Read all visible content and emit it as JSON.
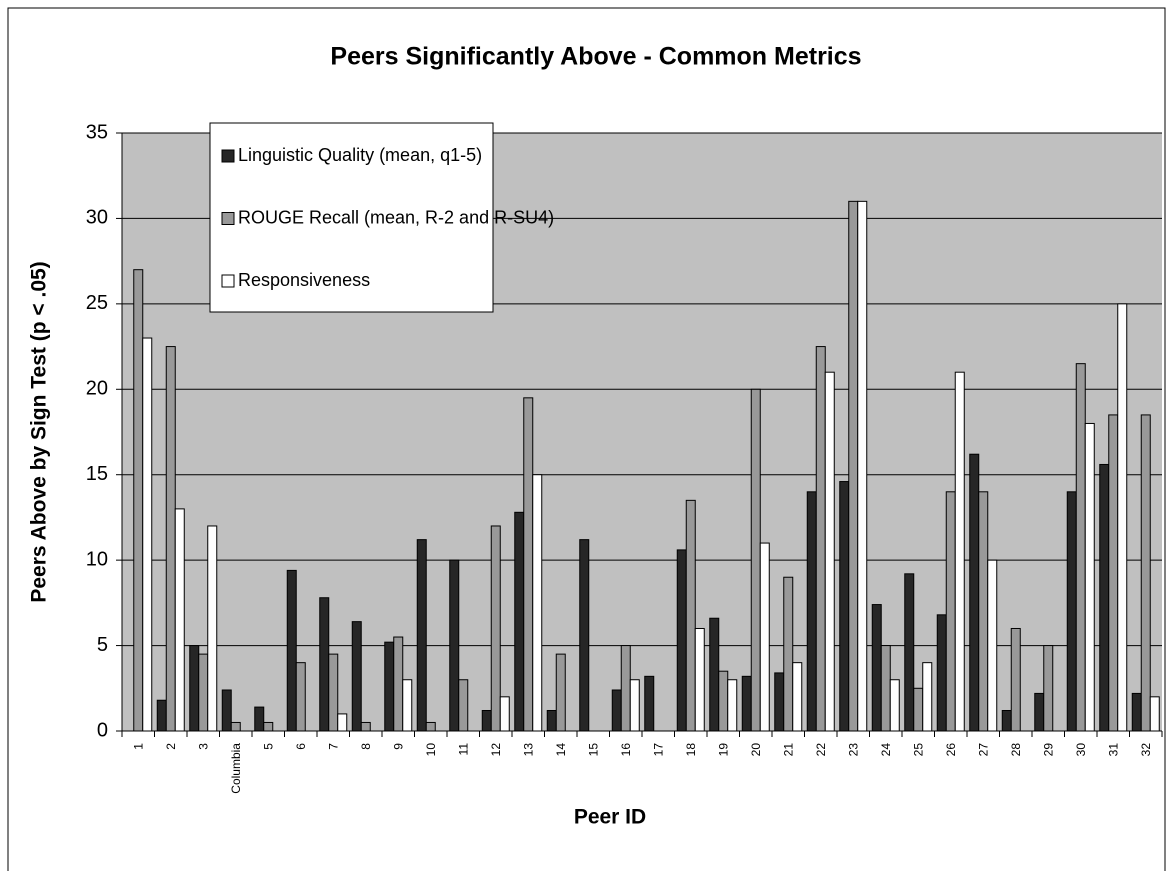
{
  "chart_data": {
    "type": "bar",
    "title": "Peers Significantly Above - Common Metrics",
    "x_label": "Peer ID",
    "y_label": "Peers Above by Sign Test (p < .05)",
    "categories": [
      "1",
      "2",
      "3",
      "Columbia",
      "5",
      "6",
      "7",
      "8",
      "9",
      "10",
      "11",
      "12",
      "13",
      "14",
      "15",
      "16",
      "17",
      "18",
      "19",
      "20",
      "21",
      "22",
      "23",
      "24",
      "25",
      "26",
      "27",
      "28",
      "29",
      "30",
      "31",
      "32"
    ],
    "series": [
      {
        "name": "Linguistic Quality (mean, q1-5)",
        "color": "#262626",
        "values": [
          0,
          1.8,
          5,
          2.4,
          1.4,
          9.4,
          7.8,
          6.4,
          5.2,
          11.2,
          10,
          1.2,
          12.8,
          1.2,
          11.2,
          2.4,
          3.2,
          10.6,
          6.6,
          3.2,
          3.4,
          14,
          14.6,
          7.4,
          9.2,
          6.8,
          16.2,
          1.2,
          2.2,
          14,
          15.6,
          2.2
        ]
      },
      {
        "name": "ROUGE Recall (mean, R-2 and R-SU4)",
        "color": "#999999",
        "values": [
          27,
          22.5,
          4.5,
          0.5,
          0.5,
          4,
          4.5,
          0.5,
          5.5,
          0.5,
          3,
          12,
          19.5,
          4.5,
          0,
          5,
          0,
          13.5,
          3.5,
          20,
          9,
          22.5,
          31,
          5,
          2.5,
          14,
          14,
          6,
          5,
          21.5,
          18.5,
          18.5
        ]
      },
      {
        "name": "Responsiveness",
        "color": "#ffffff",
        "values": [
          23,
          13,
          12,
          0,
          0,
          0,
          1,
          0,
          3,
          0,
          0,
          2,
          15,
          0,
          0,
          3,
          0,
          6,
          3,
          11,
          4,
          21,
          31,
          3,
          4,
          21,
          10,
          0,
          0,
          18,
          25,
          2
        ]
      }
    ],
    "ylim": [
      0,
      35
    ],
    "yticks": [
      0,
      5,
      10,
      15,
      20,
      25,
      30,
      35
    ],
    "grid": true,
    "legend": "top-left"
  }
}
